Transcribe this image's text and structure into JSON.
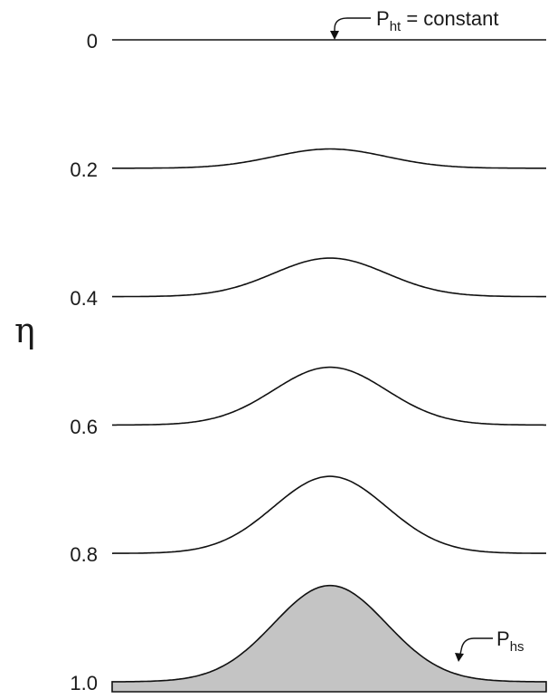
{
  "axis": {
    "symbol": "η",
    "ticks": [
      "0",
      "0.2",
      "0.4",
      "0.6",
      "0.8",
      "1.0"
    ]
  },
  "labels": {
    "top": {
      "base": "P",
      "sub": "ht",
      "rest": " = constant"
    },
    "bottom": {
      "base": "P",
      "sub": "hs"
    }
  },
  "surfaces": [
    {
      "eta": 0.0,
      "bump": 0.0
    },
    {
      "eta": 0.2,
      "bump": 0.03
    },
    {
      "eta": 0.4,
      "bump": 0.06
    },
    {
      "eta": 0.6,
      "bump": 0.09
    },
    {
      "eta": 0.8,
      "bump": 0.12
    },
    {
      "eta": 1.0,
      "bump": 0.15
    }
  ],
  "colors": {
    "terrain": "#c4c4c4",
    "line": "#111111"
  }
}
